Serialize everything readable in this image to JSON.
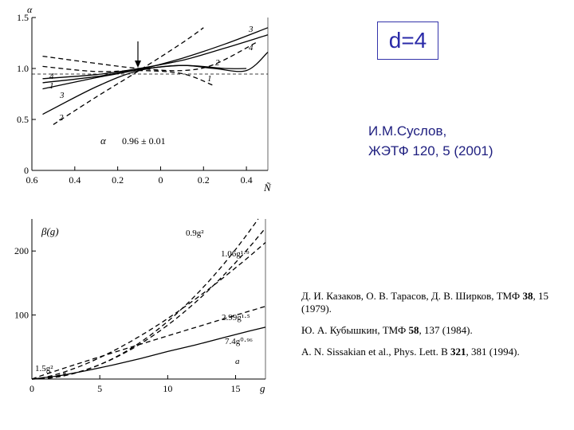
{
  "header_box": {
    "text": "d=4"
  },
  "author": {
    "line1": "И.М.Суслов,",
    "line2": "ЖЭТФ 120, 5 (2001)"
  },
  "references": [
    {
      "pre": "Д. И. Казаков, О. В. Тарасов, Д. В. Ширков, ТМФ ",
      "bold": "38",
      "post": ", 15 (1979)."
    },
    {
      "pre": "Ю. А. Кубышкин, ТМФ ",
      "bold": "58",
      "post": ", 137 (1984)."
    },
    {
      "pre": "A. N. Sissakian et al., Phys. Lett. B ",
      "bold": "321",
      "post": ", 381 (1994)."
    }
  ],
  "chart_data": [
    {
      "type": "line",
      "ylabel": "α",
      "xlabel": "Ñ",
      "x_tick_labels": [
        "0.6",
        "0.4",
        "0.2",
        "0",
        "0.2",
        "0.4"
      ],
      "y_tick_labels": [
        "0",
        "0.5",
        "1.0",
        "1.5"
      ],
      "xlim": [
        -0.6,
        0.5
      ],
      "ylim": [
        0,
        1.5
      ],
      "annotation": {
        "symbol": "α",
        "value": "0.96 ± 0.01"
      },
      "curve_labels": [
        "1",
        "2",
        "3",
        "4"
      ],
      "series": [
        {
          "label": "3",
          "style": "solid",
          "x": [
            -0.55,
            -0.3,
            -0.1,
            0.1,
            0.3,
            0.5
          ],
          "y": [
            0.8,
            0.91,
            0.99,
            1.1,
            1.24,
            1.4
          ]
        },
        {
          "label": "4",
          "style": "solid",
          "x": [
            -0.55,
            -0.3,
            -0.1,
            0.1,
            0.3,
            0.5
          ],
          "y": [
            0.9,
            0.94,
            1.0,
            1.08,
            1.2,
            1.33
          ]
        },
        {
          "label": "1",
          "style": "solid",
          "x": [
            -0.55,
            -0.3,
            -0.1,
            0.1,
            0.25,
            0.4,
            0.5
          ],
          "y": [
            0.86,
            0.92,
            0.99,
            1.03,
            1.0,
            0.98,
            1.16
          ]
        },
        {
          "label": "2",
          "style": "solid",
          "x": [
            -0.55,
            -0.3,
            -0.1,
            0.1,
            0.3,
            0.4
          ],
          "y": [
            0.55,
            0.82,
            0.98,
            1.03,
            1.0,
            1.0
          ]
        },
        {
          "label": "",
          "style": "dashed",
          "x": [
            -0.5,
            -0.3,
            -0.1,
            0.1,
            0.2
          ],
          "y": [
            0.45,
            0.72,
            0.98,
            1.25,
            1.4
          ]
        },
        {
          "label": "",
          "style": "dashed",
          "x": [
            -0.55,
            -0.3,
            -0.1,
            0.1,
            0.25,
            0.45
          ],
          "y": [
            1.12,
            1.05,
            1.0,
            0.98,
            1.04,
            1.26
          ]
        },
        {
          "label": "",
          "style": "dashed",
          "x": [
            -0.55,
            -0.3,
            -0.1,
            0.1,
            0.25
          ],
          "y": [
            1.02,
            0.97,
            0.98,
            0.95,
            0.83
          ]
        }
      ]
    },
    {
      "type": "line",
      "ylabel": "β(g)",
      "xlabel": "g",
      "x_tick_labels": [
        "0",
        "5",
        "10",
        "15"
      ],
      "y_tick_labels": [
        "100",
        "200"
      ],
      "xlim": [
        0,
        17.2
      ],
      "ylim": [
        0,
        250
      ],
      "series": [
        {
          "name": "0.9g²",
          "style": "dashed",
          "coef": 0.9,
          "exp": 2.0,
          "x_max": 16.8
        },
        {
          "name": "1.06g¹·⁹",
          "style": "dashed",
          "coef": 1.06,
          "exp": 1.9,
          "x_max": 17.2
        },
        {
          "name": "2.99g¹·⁵",
          "style": "dashed",
          "coef": 2.99,
          "exp": 1.5,
          "x_max": 17.2
        },
        {
          "name": "7.4g⁰·⁹⁶",
          "style": "dashed",
          "coef": 7.4,
          "exp": 0.96,
          "x_max": 17.2
        },
        {
          "name": "1.5g²",
          "style": "dashed",
          "coef": 1.5,
          "exp": 2.0,
          "x_max": 2.5
        },
        {
          "name": "",
          "style": "solid",
          "points_x": [
            0,
            2,
            4,
            6,
            8,
            10,
            12,
            14,
            16,
            17.2
          ],
          "points_y": [
            0,
            5,
            13,
            22,
            32,
            43,
            53,
            64,
            75,
            81
          ]
        }
      ],
      "annotation": "a"
    }
  ]
}
